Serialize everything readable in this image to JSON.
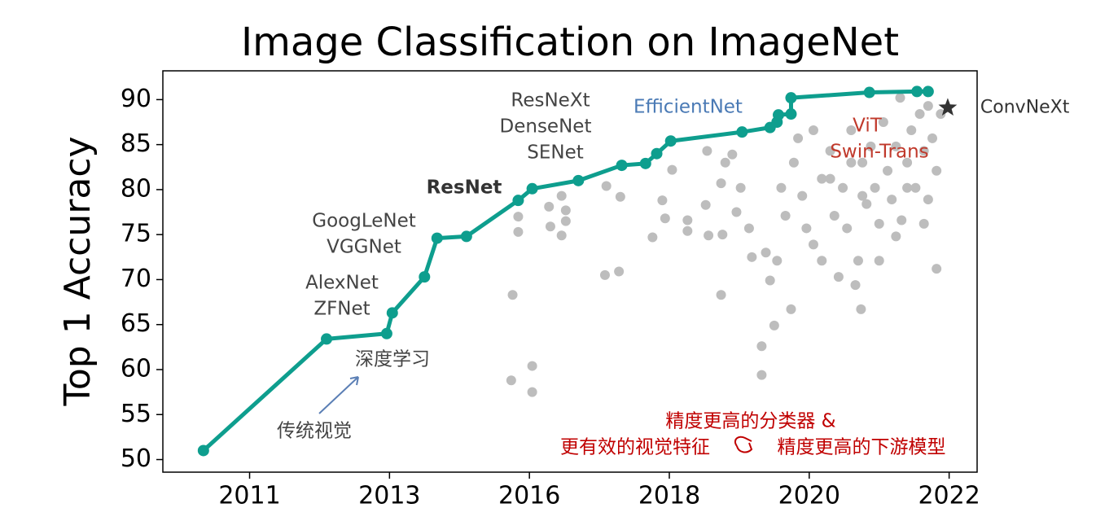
{
  "chart_data": {
    "type": "line",
    "title": "Image Classification on ImageNet",
    "ylabel": "Top 1 Accuracy",
    "xlim": [
      0.38,
      6.2
    ],
    "xticks": [
      {
        "value": 1,
        "label": "2011"
      },
      {
        "value": 2,
        "label": "2013"
      },
      {
        "value": 3,
        "label": "2016"
      },
      {
        "value": 4,
        "label": "2018"
      },
      {
        "value": 5,
        "label": "2020"
      },
      {
        "value": 6,
        "label": "2022"
      }
    ],
    "ylim": [
      48.6,
      93.2
    ],
    "yticks": [
      50,
      55,
      60,
      65,
      70,
      75,
      80,
      85,
      90
    ],
    "series": [
      {
        "type": "line",
        "color": "#0e9e8e",
        "x": [
          0.67,
          1.55,
          1.98,
          2.02,
          2.25,
          2.34,
          2.55,
          2.92,
          3.02,
          3.35,
          3.66,
          3.83,
          3.91,
          4.01,
          4.52,
          4.72,
          4.77,
          4.78,
          4.87,
          4.87,
          5.43,
          5.77,
          5.85
        ],
        "values": [
          51.0,
          63.4,
          64.0,
          66.3,
          70.3,
          74.6,
          74.8,
          78.8,
          80.1,
          81.0,
          82.7,
          82.9,
          84.0,
          85.4,
          86.4,
          86.9,
          87.5,
          88.3,
          88.4,
          90.2,
          90.8,
          90.9,
          90.9
        ]
      },
      {
        "type": "scatter",
        "color": "#bdbdbd",
        "x": [
          2.88,
          2.92,
          2.92,
          2.87,
          3.02,
          3.02,
          3.23,
          3.14,
          3.26,
          3.15,
          3.26,
          3.23,
          3.55,
          3.65,
          3.54,
          3.64,
          3.95,
          3.97,
          3.88,
          4.02,
          4.13,
          4.13,
          4.26,
          4.27,
          4.28,
          4.4,
          4.37,
          4.38,
          4.37,
          4.45,
          4.51,
          4.48,
          4.57,
          4.59,
          4.66,
          4.66,
          4.69,
          4.72,
          4.75,
          4.8,
          4.83,
          4.87,
          4.89,
          4.95,
          4.98,
          5.03,
          5.09,
          5.15,
          5.18,
          5.21,
          5.27,
          5.3,
          5.33,
          5.35,
          5.37,
          5.38,
          5.41,
          5.44,
          5.47,
          5.5,
          5.53,
          5.56,
          5.59,
          5.62,
          5.65,
          5.66,
          5.7,
          5.73,
          5.76,
          5.79,
          5.82,
          5.85,
          5.88,
          5.91,
          5.91,
          5.94,
          5.15,
          5.24,
          5.3,
          5.38,
          5.03,
          4.92,
          4.77,
          5.09,
          5.5,
          5.62,
          5.7,
          5.82,
          5.85
        ],
        "values": [
          68.3,
          77.0,
          75.3,
          58.8,
          60.4,
          57.5,
          79.3,
          78.1,
          77.7,
          75.9,
          76.5,
          74.9,
          80.4,
          79.2,
          70.5,
          70.9,
          78.8,
          76.8,
          74.7,
          82.2,
          76.6,
          75.4,
          78.3,
          84.3,
          74.9,
          83.0,
          80.7,
          75.0,
          68.3,
          83.9,
          80.2,
          77.5,
          75.7,
          72.5,
          62.6,
          59.4,
          73.0,
          69.9,
          64.9,
          80.2,
          77.1,
          66.7,
          83.0,
          79.3,
          75.7,
          73.9,
          81.2,
          84.3,
          77.1,
          70.3,
          75.7,
          86.6,
          69.4,
          72.1,
          66.7,
          83.0,
          78.4,
          84.8,
          80.2,
          76.2,
          87.5,
          82.1,
          78.9,
          84.8,
          90.2,
          76.6,
          83.0,
          86.6,
          80.2,
          88.4,
          84.3,
          78.9,
          85.7,
          82.1,
          71.2,
          88.4,
          81.2,
          80.2,
          83.0,
          79.3,
          86.6,
          85.7,
          72.1,
          72.1,
          72.1,
          74.8,
          80.2,
          76.2,
          89.3
        ]
      },
      {
        "type": "star",
        "name": "ConvNeXt",
        "color": "#333333",
        "x": [
          5.99
        ],
        "values": [
          89.1
        ]
      }
    ],
    "annotations": [
      "ResNeXt",
      "DenseNet",
      "SENet",
      "ResNet",
      "GoogLeNet",
      "VGGNet",
      "AlexNet",
      "ZFNet",
      "深度学习",
      "传统视觉",
      "EfficientNet",
      "ViT",
      "Swin-Trans",
      "精度更高的分类器 &",
      "更有效的视觉特征",
      "精度更高的下游模型"
    ]
  }
}
